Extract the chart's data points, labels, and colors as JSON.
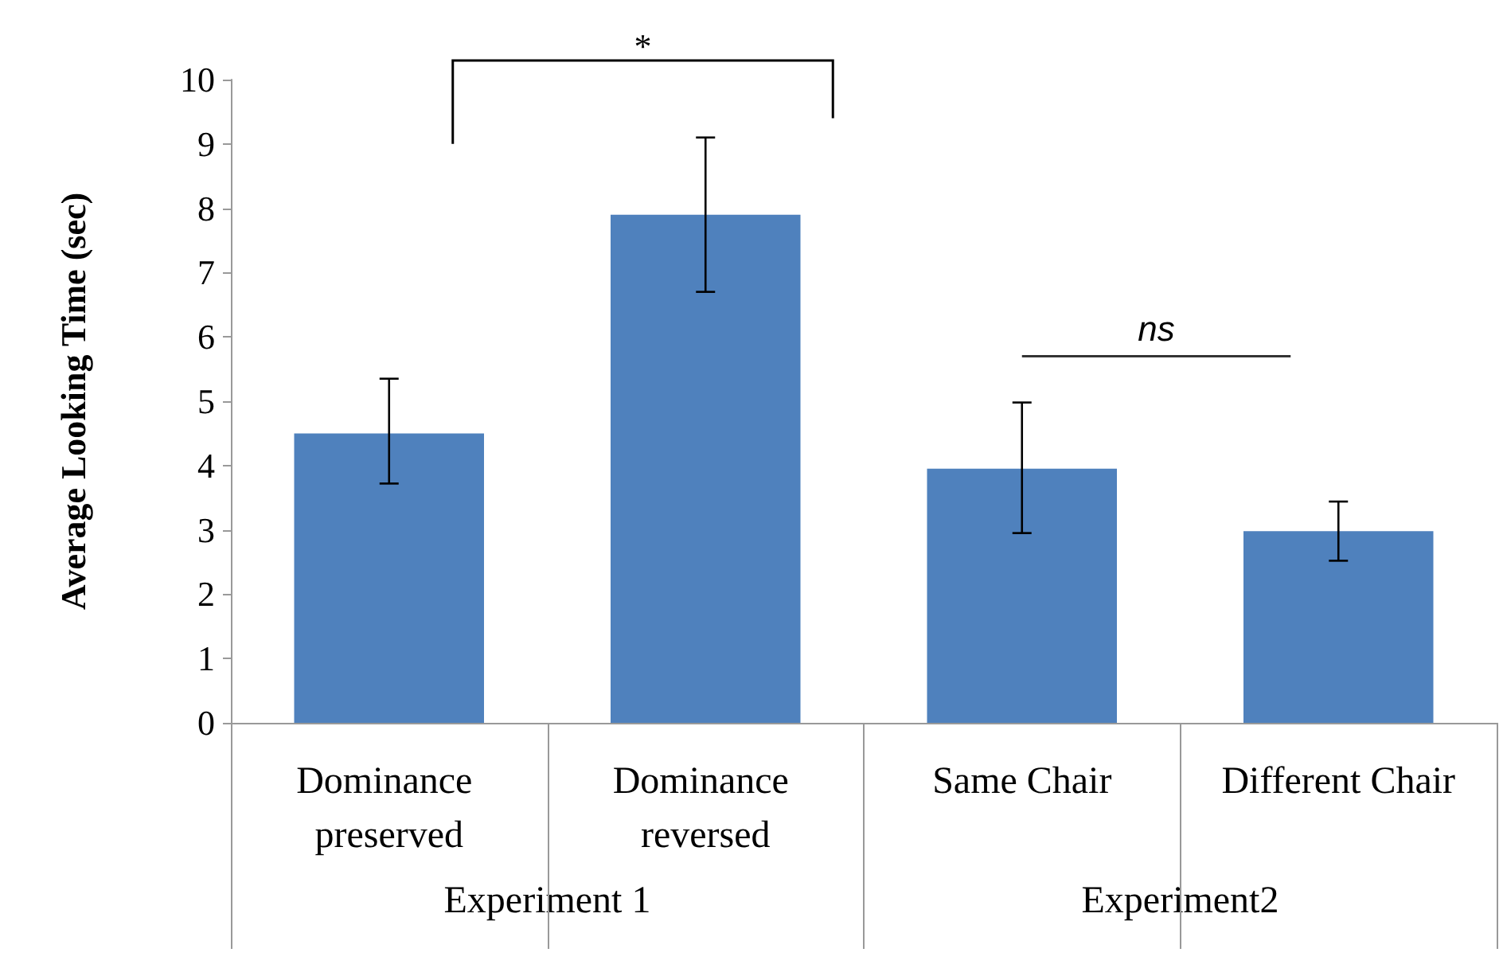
{
  "chart_data": {
    "type": "bar",
    "ylabel": "Average Looking Time (sec)",
    "categories": [
      "Dominance preserved",
      "Dominance reversed",
      "Same Chair",
      "Different Chair"
    ],
    "values": [
      4.5,
      7.9,
      3.95,
      2.98
    ],
    "errors": [
      [
        3.72,
        5.35
      ],
      [
        6.7,
        9.1
      ],
      [
        2.95,
        4.98
      ],
      [
        2.52,
        3.44
      ]
    ],
    "color": "#4f81bd",
    "ylim": [
      0,
      10
    ],
    "yticks": [
      0,
      1,
      2,
      3,
      4,
      5,
      6,
      7,
      8,
      9,
      10
    ],
    "grid": false,
    "annotations": [
      "*",
      "ns",
      "Experiment 1",
      "Experiment2"
    ]
  }
}
